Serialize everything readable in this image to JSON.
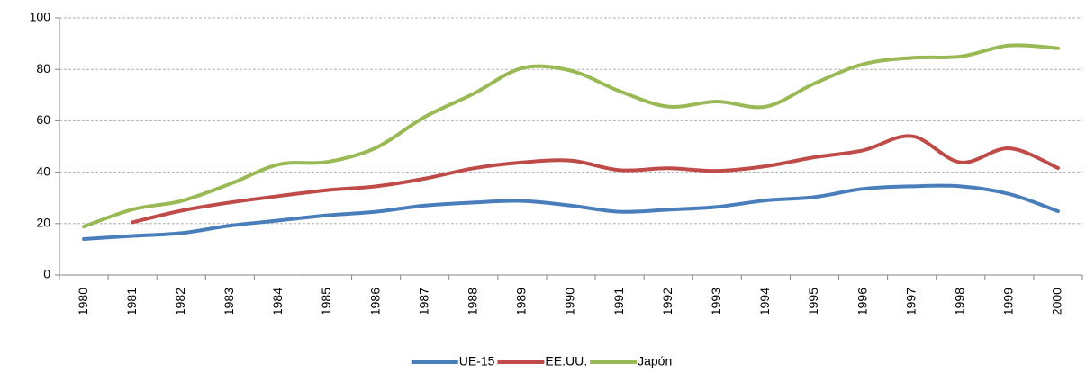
{
  "chart_data": {
    "type": "line",
    "categories": [
      "1980",
      "1981",
      "1982",
      "1983",
      "1984",
      "1985",
      "1986",
      "1987",
      "1988",
      "1989",
      "1990",
      "1991",
      "1992",
      "1993",
      "1994",
      "1995",
      "1996",
      "1997",
      "1998",
      "1999",
      "2000"
    ],
    "series": [
      {
        "name": "UE-15",
        "color": "#4a7ebb",
        "values": [
          14,
          15.2,
          16.3,
          19.2,
          21.2,
          23.2,
          24.6,
          27,
          28.2,
          28.8,
          27,
          24.6,
          25.4,
          26.5,
          29,
          30.3,
          33.5,
          34.5,
          34.5,
          31.5,
          24.8
        ]
      },
      {
        "name": "EE.UU.",
        "color": "#be4b48",
        "values": [
          null,
          20.5,
          25,
          28.2,
          30.7,
          33,
          34.5,
          37.5,
          41.5,
          43.8,
          44.5,
          40.8,
          41.5,
          40.5,
          42.3,
          45.8,
          48.5,
          54,
          43.8,
          49.3,
          41.6
        ]
      },
      {
        "name": "Japón",
        "color": "#98b954",
        "values": [
          18.8,
          25.5,
          28.8,
          35.4,
          43,
          44,
          49.5,
          61.5,
          70.5,
          80.5,
          79.5,
          71.5,
          65.5,
          67.5,
          65.5,
          74.5,
          82,
          84.5,
          85,
          89.3,
          88.2
        ]
      }
    ],
    "ylim": [
      0,
      100
    ],
    "yticks": [
      0,
      20,
      40,
      60,
      80,
      100
    ],
    "grid": true,
    "legend": "bottom"
  }
}
